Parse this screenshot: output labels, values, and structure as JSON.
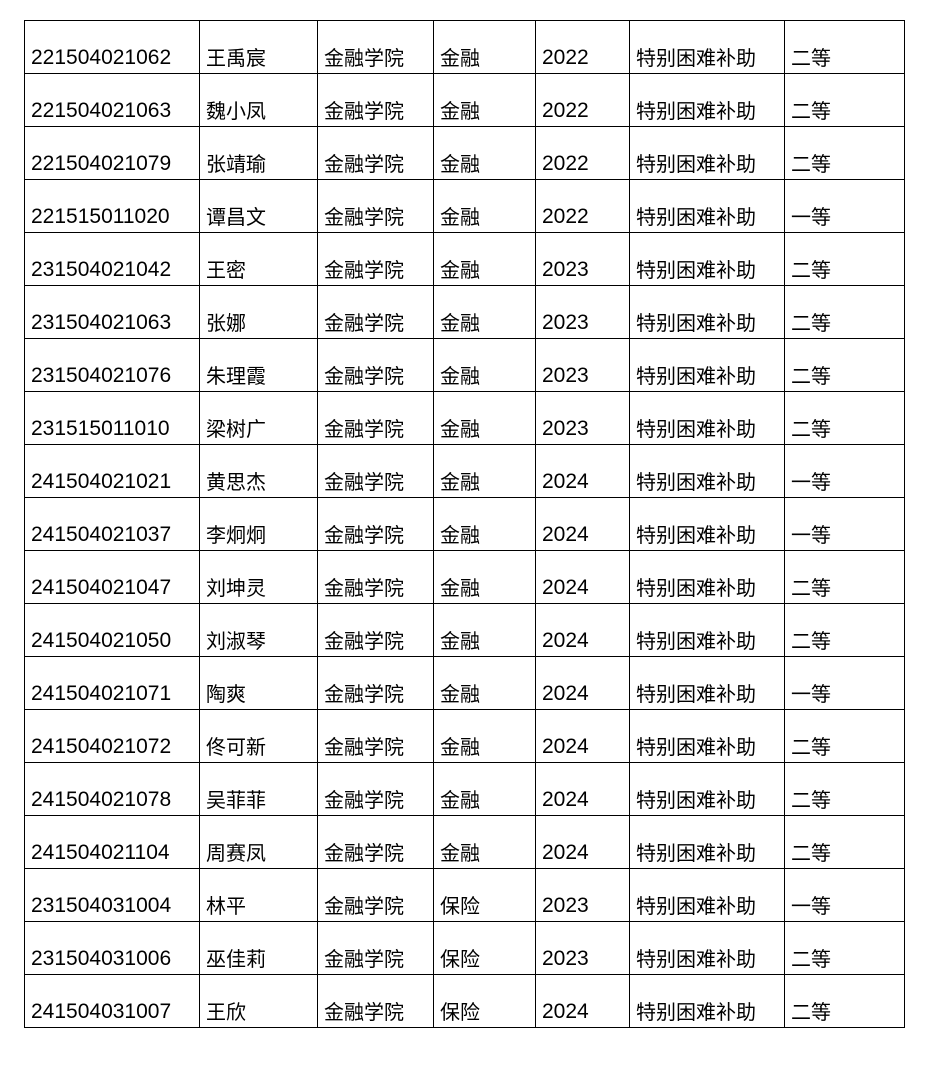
{
  "rows": [
    [
      "221504021062",
      "王禹宸",
      "金融学院",
      "金融",
      "2022",
      "特别困难补助",
      "二等"
    ],
    [
      "221504021063",
      "魏小凤",
      "金融学院",
      "金融",
      "2022",
      "特别困难补助",
      "二等"
    ],
    [
      "221504021079",
      "张靖瑜",
      "金融学院",
      "金融",
      "2022",
      "特别困难补助",
      "二等"
    ],
    [
      "221515011020",
      "谭昌文",
      "金融学院",
      "金融",
      "2022",
      "特别困难补助",
      "一等"
    ],
    [
      "231504021042",
      "王密",
      "金融学院",
      "金融",
      "2023",
      "特别困难补助",
      "二等"
    ],
    [
      "231504021063",
      "张娜",
      "金融学院",
      "金融",
      "2023",
      "特别困难补助",
      "二等"
    ],
    [
      "231504021076",
      "朱理霞",
      "金融学院",
      "金融",
      "2023",
      "特别困难补助",
      "二等"
    ],
    [
      "231515011010",
      "梁树广",
      "金融学院",
      "金融",
      "2023",
      "特别困难补助",
      "二等"
    ],
    [
      "241504021021",
      "黄思杰",
      "金融学院",
      "金融",
      "2024",
      "特别困难补助",
      "一等"
    ],
    [
      "241504021037",
      "李炯炯",
      "金融学院",
      "金融",
      "2024",
      "特别困难补助",
      "一等"
    ],
    [
      "241504021047",
      "刘坤灵",
      "金融学院",
      "金融",
      "2024",
      "特别困难补助",
      "二等"
    ],
    [
      "241504021050",
      "刘淑琴",
      "金融学院",
      "金融",
      "2024",
      "特别困难补助",
      "二等"
    ],
    [
      "241504021071",
      "陶爽",
      "金融学院",
      "金融",
      "2024",
      "特别困难补助",
      "一等"
    ],
    [
      "241504021072",
      "佟可新",
      "金融学院",
      "金融",
      "2024",
      "特别困难补助",
      "二等"
    ],
    [
      "241504021078",
      "吴菲菲",
      "金融学院",
      "金融",
      "2024",
      "特别困难补助",
      "二等"
    ],
    [
      "241504021104",
      "周赛凤",
      "金融学院",
      "金融",
      "2024",
      "特别困难补助",
      "二等"
    ],
    [
      "231504031004",
      "林平",
      "金融学院",
      "保险",
      "2023",
      "特别困难补助",
      "一等"
    ],
    [
      "231504031006",
      "巫佳莉",
      "金融学院",
      "保险",
      "2023",
      "特别困难补助",
      "二等"
    ],
    [
      "241504031007",
      "王欣",
      "金融学院",
      "保险",
      "2024",
      "特别困难补助",
      "二等"
    ]
  ]
}
